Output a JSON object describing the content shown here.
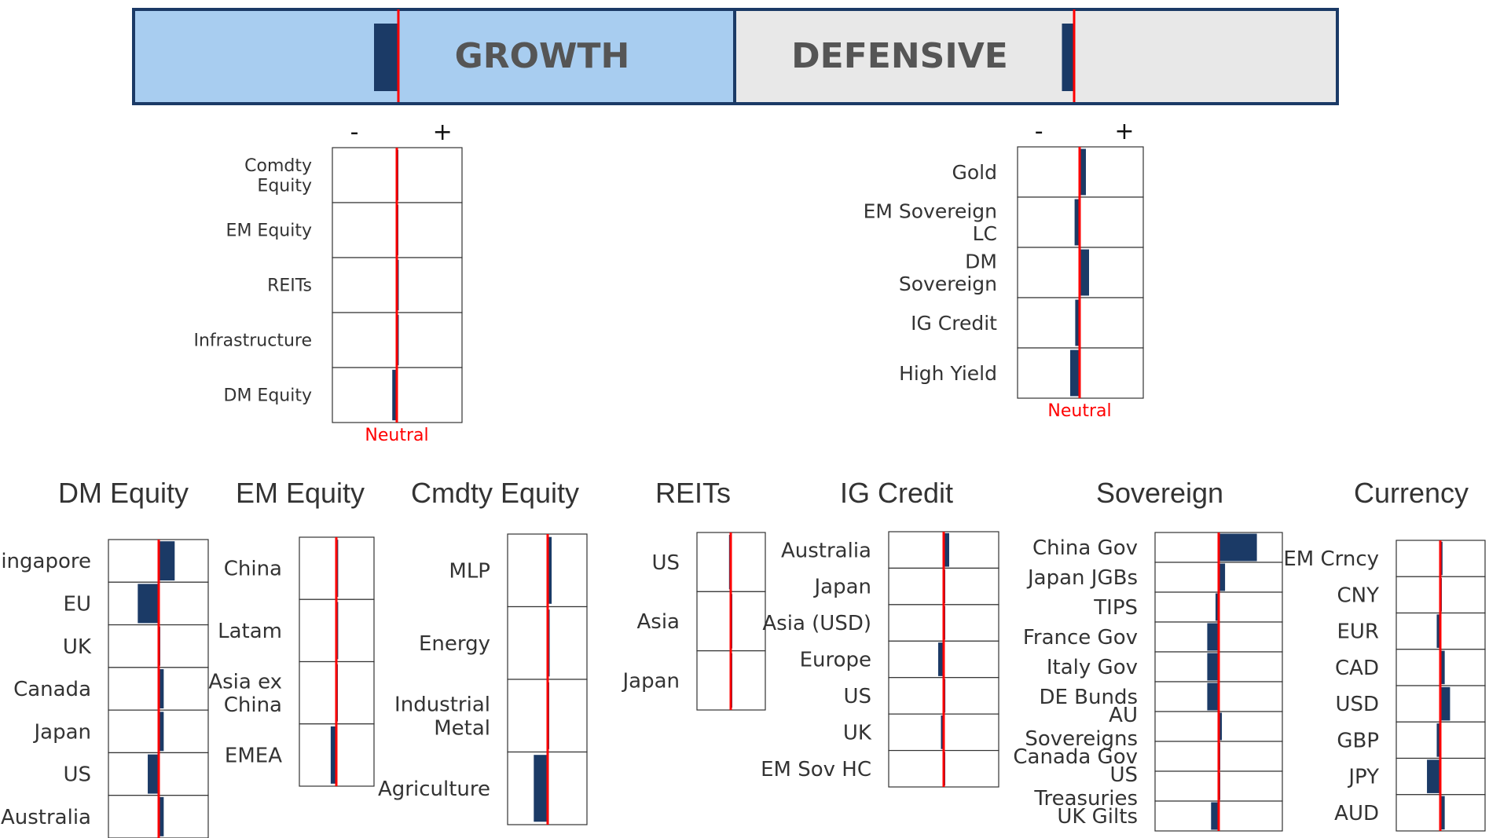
{
  "colors": {
    "growth_fill": "#a8cdf0",
    "defensive_fill": "#e8e8e8",
    "bar": "#1b3a66",
    "neutral_line": "#ff0000",
    "frame": "#1b3a66",
    "grid": "#333333"
  },
  "chart_data": [
    {
      "id": "top",
      "type": "bar",
      "orientation": "horizontal-deviation",
      "categories": [
        "GROWTH",
        "DEFENSIVE"
      ],
      "values": [
        -0.1,
        -0.05
      ],
      "xlim": [
        -1,
        1
      ]
    },
    {
      "id": "growth",
      "type": "bar",
      "orientation": "horizontal-deviation",
      "axis_minus": "-",
      "axis_plus": "+",
      "neutral_label": "Neutral",
      "categories": [
        "Comdty Equity",
        "EM Equity",
        "REITs",
        "Infrastructure",
        "DM Equity"
      ],
      "values": [
        0,
        0,
        0.03,
        0.03,
        -0.07
      ],
      "xlim": [
        -1,
        1
      ]
    },
    {
      "id": "defensive",
      "type": "bar",
      "orientation": "horizontal-deviation",
      "axis_minus": "-",
      "axis_plus": "+",
      "neutral_label": "Neutral",
      "categories": [
        "Gold",
        "EM Sovereign LC",
        "DM Sovereign",
        "IG Credit",
        "High Yield"
      ],
      "values": [
        0.1,
        -0.08,
        0.15,
        -0.07,
        -0.15
      ],
      "xlim": [
        -1,
        1
      ]
    },
    {
      "id": "dm_equity",
      "type": "bar",
      "orientation": "horizontal-deviation",
      "title": "DM Equity",
      "categories": [
        "Singapore",
        "EU",
        "UK",
        "Canada",
        "Japan",
        "US",
        "Australia"
      ],
      "values": [
        0.32,
        -0.42,
        0,
        0.1,
        0.1,
        -0.22,
        0.1
      ],
      "xlim": [
        -1,
        1
      ]
    },
    {
      "id": "em_equity",
      "type": "bar",
      "orientation": "horizontal-deviation",
      "title": "EM Equity",
      "categories": [
        "China",
        "Latam",
        "Asia ex China",
        "EMEA"
      ],
      "values": [
        0.05,
        0.05,
        0,
        -0.15
      ],
      "xlim": [
        -1,
        1
      ]
    },
    {
      "id": "cmdty_equity",
      "type": "bar",
      "orientation": "horizontal-deviation",
      "title": "Cmdty Equity",
      "categories": [
        "MLP",
        "Energy",
        "Industrial Metal",
        "Agriculture"
      ],
      "values": [
        0.1,
        0.05,
        0,
        -0.35
      ],
      "xlim": [
        -1,
        1
      ]
    },
    {
      "id": "reits",
      "type": "bar",
      "orientation": "horizontal-deviation",
      "title": "REITs",
      "categories": [
        "US",
        "Asia",
        "Japan"
      ],
      "values": [
        -0.05,
        0,
        0
      ],
      "xlim": [
        -1,
        1
      ]
    },
    {
      "id": "ig_credit",
      "type": "bar",
      "orientation": "horizontal-deviation",
      "title": "IG Credit",
      "categories": [
        "Australia",
        "Japan",
        "Asia (USD)",
        "Europe",
        "US",
        "UK",
        "EM Sov HC"
      ],
      "values": [
        0.1,
        0,
        0,
        -0.1,
        0.03,
        -0.05,
        0
      ],
      "xlim": [
        -1,
        1
      ]
    },
    {
      "id": "sovereign",
      "type": "bar",
      "orientation": "horizontal-deviation",
      "title": "Sovereign",
      "categories": [
        "China Gov",
        "Japan JGBs",
        "TIPS",
        "France Gov",
        "Italy Gov",
        "DE Bunds",
        "AU Sovereigns",
        "Canada Gov",
        "US Treasuries",
        "UK Gilts"
      ],
      "values": [
        0.6,
        0.1,
        -0.05,
        -0.18,
        -0.18,
        -0.18,
        0.05,
        0,
        0,
        -0.12
      ],
      "xlim": [
        -1,
        1
      ]
    },
    {
      "id": "currency",
      "type": "bar",
      "orientation": "horizontal-deviation",
      "title": "Currency",
      "categories": [
        "EM Crncy",
        "CNY",
        "EUR",
        "CAD",
        "USD",
        "GBP",
        "JPY",
        "AUD"
      ],
      "values": [
        0.05,
        0,
        -0.08,
        0.1,
        0.22,
        -0.08,
        -0.3,
        0.1
      ],
      "xlim": [
        -1,
        1
      ]
    }
  ]
}
